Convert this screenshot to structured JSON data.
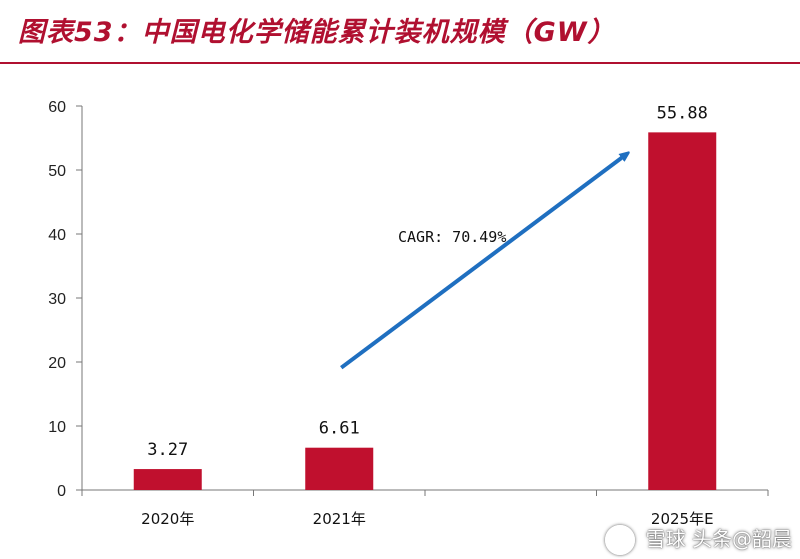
{
  "header": {
    "title": "图表53：中国电化学储能累计装机规模（GW）"
  },
  "chart_data": {
    "type": "bar",
    "categories": [
      "2020年",
      "2021年",
      "2025年E"
    ],
    "values": [
      3.27,
      6.61,
      55.88
    ],
    "data_labels": [
      "3.27",
      "6.61",
      "55.88"
    ],
    "ylim": [
      0,
      60
    ],
    "yticks": [
      0,
      10,
      20,
      30,
      40,
      50,
      60
    ],
    "xlabel": "",
    "ylabel": "",
    "annotation": "CAGR: 70.49%",
    "bar_color": "#c0102e",
    "arrow_color": "#1f6fc0"
  },
  "watermark": {
    "text": "雪球 头条@韶晨"
  }
}
